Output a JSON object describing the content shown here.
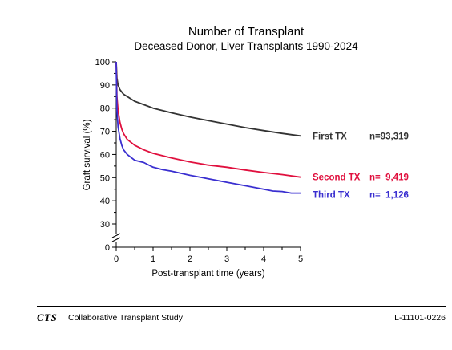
{
  "chart_data": {
    "type": "line",
    "title": "Number of Transplant",
    "subtitle": "Deceased Donor, Liver Transplants 1990-2024",
    "xlabel": "Post-transplant time (years)",
    "ylabel": "Graft survival (%)",
    "xlim": [
      0,
      5
    ],
    "ylim": [
      0,
      100
    ],
    "axis_break": true,
    "x_ticks": [
      0,
      1,
      2,
      3,
      4,
      5
    ],
    "y_ticks": [
      0,
      30,
      40,
      50,
      60,
      70,
      80,
      90,
      100
    ],
    "series": [
      {
        "name": "First TX",
        "n_label": "n=93,319",
        "color": "#333333",
        "x": [
          0,
          0.02,
          0.05,
          0.1,
          0.2,
          0.3,
          0.5,
          0.75,
          1,
          1.5,
          2,
          2.5,
          3,
          3.5,
          4,
          4.5,
          5
        ],
        "y": [
          100,
          93,
          90,
          88,
          86,
          85,
          83,
          81.5,
          80,
          78,
          76.2,
          74.6,
          73.1,
          71.6,
          70.3,
          69.1,
          68
        ]
      },
      {
        "name": "Second TX",
        "n_label": "n=  9,419",
        "color": "#e0103e",
        "x": [
          0,
          0.02,
          0.05,
          0.1,
          0.15,
          0.2,
          0.3,
          0.5,
          0.75,
          1,
          1.5,
          2,
          2.5,
          3,
          3.5,
          4,
          4.5,
          5
        ],
        "y": [
          100,
          85,
          79,
          74,
          71,
          69,
          66.5,
          64,
          62,
          60.5,
          58.5,
          56.8,
          55.4,
          54.5,
          53.3,
          52.2,
          51.3,
          50.2
        ]
      },
      {
        "name": "Third TX",
        "n_label": "n=  1,126",
        "color": "#3a2fd0",
        "x": [
          0,
          0.02,
          0.05,
          0.1,
          0.15,
          0.2,
          0.3,
          0.5,
          0.75,
          1,
          1.25,
          1.5,
          2,
          2.5,
          3,
          3.5,
          4,
          4.25,
          4.5,
          4.75,
          5
        ],
        "y": [
          100,
          79,
          72,
          67,
          64,
          62,
          60,
          57.5,
          56.5,
          54.5,
          53.5,
          52.8,
          51,
          49.5,
          48,
          46.5,
          45,
          44.2,
          44,
          43.3,
          43.3
        ]
      }
    ]
  },
  "footer": {
    "logo": "CTS",
    "organization": "Collaborative Transplant Study",
    "code": "L-11101-0226"
  }
}
